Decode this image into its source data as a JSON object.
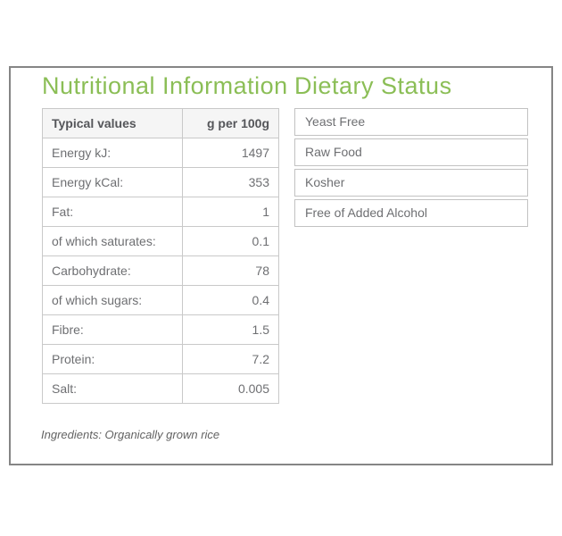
{
  "colors": {
    "accent_green": "#8bbe56",
    "panel_border": "#858585",
    "table_border": "#c9c9c9",
    "header_bg": "#f5f5f5",
    "text_gray": "#6e6f72"
  },
  "nutrition": {
    "title": "Nutritional Information",
    "table": {
      "header": {
        "label": "Typical values",
        "unit": "g per 100g"
      },
      "rows": [
        {
          "label": "Energy kJ:",
          "value": "1497"
        },
        {
          "label": "Energy kCal:",
          "value": "353"
        },
        {
          "label": "Fat:",
          "value": "1"
        },
        {
          "label": "of which saturates:",
          "value": "0.1"
        },
        {
          "label": "Carbohydrate:",
          "value": "78"
        },
        {
          "label": "of which sugars:",
          "value": "0.4"
        },
        {
          "label": "Fibre:",
          "value": "1.5"
        },
        {
          "label": "Protein:",
          "value": "7.2"
        },
        {
          "label": "Salt:",
          "value": "0.005"
        }
      ]
    },
    "ingredients": "Ingredients: Organically grown rice"
  },
  "dietary": {
    "title": "Dietary Status",
    "items": [
      {
        "label": "Yeast Free"
      },
      {
        "label": "Raw Food"
      },
      {
        "label": "Kosher"
      },
      {
        "label": "Free of Added Alcohol"
      }
    ]
  }
}
